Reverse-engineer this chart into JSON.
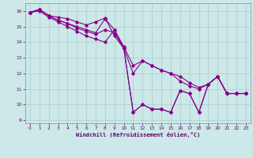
{
  "xlabel": "Windchill (Refroidissement éolien,°C)",
  "background_color": "#cce8e8",
  "grid_color": "#aacccc",
  "line_color": "#880088",
  "xlim": [
    -0.5,
    23.5
  ],
  "ylim": [
    8.8,
    16.5
  ],
  "yticks": [
    9,
    10,
    11,
    12,
    13,
    14,
    15,
    16
  ],
  "xticks": [
    0,
    1,
    2,
    3,
    4,
    5,
    6,
    7,
    8,
    9,
    10,
    11,
    12,
    13,
    14,
    15,
    16,
    17,
    18,
    19,
    20,
    21,
    22,
    23
  ],
  "series": [
    [
      15.9,
      16.1,
      15.7,
      15.6,
      15.5,
      15.3,
      15.1,
      15.3,
      15.55,
      14.4,
      13.6,
      9.5,
      10.0,
      9.7,
      9.7,
      9.5,
      10.9,
      10.7,
      9.5,
      11.3,
      11.8,
      10.7,
      10.7,
      10.7
    ],
    [
      15.9,
      16.1,
      15.7,
      15.4,
      15.2,
      15.0,
      14.8,
      14.6,
      15.5,
      14.8,
      13.6,
      9.5,
      10.0,
      9.7,
      9.7,
      9.5,
      10.9,
      10.7,
      9.5,
      11.3,
      11.8,
      10.7,
      10.7,
      10.7
    ],
    [
      15.9,
      16.1,
      15.7,
      15.4,
      15.2,
      14.9,
      14.7,
      14.5,
      14.8,
      14.6,
      13.6,
      12.0,
      12.8,
      12.5,
      12.2,
      12.0,
      11.5,
      11.2,
      11.0,
      11.3,
      11.8,
      10.7,
      10.7,
      10.7
    ],
    [
      15.9,
      16.0,
      15.6,
      15.3,
      15.0,
      14.7,
      14.4,
      14.2,
      14.0,
      14.8,
      13.7,
      12.5,
      12.8,
      12.5,
      12.2,
      12.0,
      11.8,
      11.4,
      11.1,
      11.3,
      11.8,
      10.7,
      10.7,
      10.7
    ]
  ]
}
